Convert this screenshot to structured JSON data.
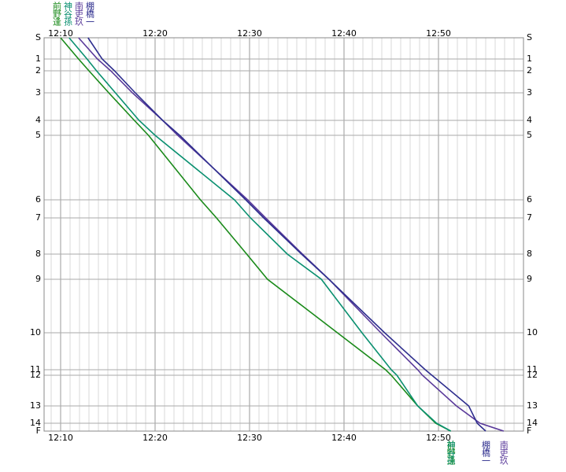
{
  "chart_data": {
    "type": "line",
    "xlim": [
      728.25,
      779
    ],
    "ylim": [
      0,
      500
    ],
    "xticks": [
      {
        "value": 730,
        "label": "12:10"
      },
      {
        "value": 740,
        "label": "12:20"
      },
      {
        "value": 750,
        "label": "12:30"
      },
      {
        "value": 760,
        "label": "12:40"
      },
      {
        "value": 770,
        "label": "12:50"
      }
    ],
    "x_minor_step": 1,
    "yticks": [
      {
        "value": 0,
        "label": "S"
      },
      27,
      42,
      70,
      105,
      124,
      206,
      229,
      275,
      307,
      375,
      422,
      429,
      468,
      490,
      {
        "value": 500,
        "label": "F"
      }
    ],
    "ytick_labels_checkpoints": [
      "S",
      "1",
      "2",
      "3",
      "4",
      "5",
      "6",
      "7",
      "8",
      "9",
      "10",
      "11",
      "12",
      "13",
      "14",
      "F"
    ],
    "grid": true,
    "series": [
      {
        "name": "前野逢",
        "color": "#1a8a1a",
        "x": [
          730,
          731.9,
          733,
          735.1,
          737.8,
          739.3,
          744.8,
          746.5,
          749.7,
          751.9,
          759.3,
          764.4,
          765,
          767.8,
          769.7,
          771.3
        ],
        "values": [
          0,
          27,
          42,
          70,
          105,
          124,
          206,
          229,
          275,
          307,
          375,
          422,
          429,
          468,
          490,
          500
        ]
      },
      {
        "name": "神谷孫",
        "color": "#0a9070",
        "x": [
          730.9,
          732.8,
          733.8,
          735.8,
          738.3,
          740,
          748.4,
          750.1,
          754,
          757.6,
          761.9,
          765,
          765.6,
          767.8,
          769.8,
          771.3
        ],
        "values": [
          0,
          27,
          42,
          70,
          105,
          124,
          206,
          229,
          275,
          307,
          375,
          422,
          429,
          468,
          490,
          500
        ]
      },
      {
        "name": "南吏玖",
        "color": "#5a3a9a",
        "x": [
          731.9,
          733.9,
          735.3,
          737.6,
          740.8,
          742.4,
          749.8,
          751.7,
          755.6,
          758.4,
          763.9,
          767.8,
          768.3,
          771.9,
          774.4,
          776.9
        ],
        "values": [
          0,
          27,
          42,
          70,
          105,
          124,
          206,
          229,
          275,
          307,
          375,
          422,
          429,
          468,
          490,
          500
        ]
      },
      {
        "name": "棚橋一",
        "color": "#2e2e8e",
        "x": [
          732.9,
          734.4,
          735.7,
          737.9,
          740.8,
          742.6,
          749.6,
          751.5,
          755.5,
          758.4,
          764.3,
          768.6,
          769.3,
          773.2,
          774.1,
          775
        ],
        "values": [
          0,
          27,
          42,
          70,
          105,
          124,
          206,
          229,
          275,
          307,
          375,
          422,
          429,
          468,
          490,
          500
        ]
      }
    ]
  }
}
